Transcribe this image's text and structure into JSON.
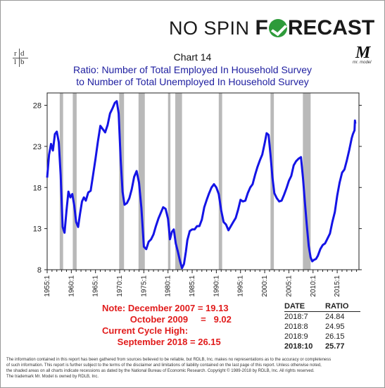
{
  "logo": {
    "part1": "NO SPIN",
    "part2a": "F",
    "part2b": "RECAST"
  },
  "rdlb": [
    "r",
    "d",
    "l",
    "b"
  ],
  "mrmodel": {
    "m": "M",
    "tag": "mr. model"
  },
  "title": {
    "line1": "Chart 14",
    "line2": "Ratio: Number of Total Employed In Household Survey",
    "line3": "to Number of Total Unemployed In Household Survey"
  },
  "colors": {
    "series": "#1414e6",
    "recession": "#b9b9b9",
    "note": "#e11b1b"
  },
  "chart_data": {
    "type": "line",
    "title": "Ratio: Number of Total Employed In Household Survey to Number of Total Unemployed In Household Survey",
    "xlim": [
      1955.0,
      2019.5
    ],
    "ylim": [
      8,
      29.5
    ],
    "yticks": [
      8,
      13,
      18,
      23,
      28
    ],
    "xticks": [
      1955,
      1960,
      1965,
      1970,
      1975,
      1980,
      1985,
      1990,
      1995,
      2000,
      2005,
      2010,
      2015
    ],
    "xtick_labels": [
      "1955:1",
      "1960:1",
      "1965:1",
      "1970:1",
      "1975:1",
      "1980:1",
      "1985:1",
      "1990:1",
      "1995:1",
      "2000:1",
      "2005:1",
      "2010:1",
      "2015:1"
    ],
    "grid": false,
    "recessions": [
      [
        1957.6,
        1958.3
      ],
      [
        1960.3,
        1961.1
      ],
      [
        1969.9,
        1970.9
      ],
      [
        1973.9,
        1975.2
      ],
      [
        1980.0,
        1980.5
      ],
      [
        1981.5,
        1982.9
      ],
      [
        1990.5,
        1991.2
      ],
      [
        2001.2,
        2001.9
      ],
      [
        2007.9,
        2009.5
      ]
    ],
    "series": [
      {
        "x": [
          1955.0,
          1955.4,
          1955.8,
          1956.2,
          1956.6,
          1957.0,
          1957.4,
          1957.8,
          1958.2,
          1958.6,
          1959.0,
          1959.4,
          1959.8,
          1960.2,
          1960.6,
          1961.0,
          1961.4,
          1961.8,
          1962.2,
          1962.6,
          1963.0,
          1963.5,
          1964.0,
          1964.5,
          1965.0,
          1965.5,
          1966.0,
          1966.5,
          1967.0,
          1967.5,
          1968.0,
          1968.5,
          1969.0,
          1969.4,
          1969.8,
          1970.2,
          1970.6,
          1971.0,
          1971.5,
          1972.0,
          1972.5,
          1973.0,
          1973.5,
          1974.0,
          1974.5,
          1975.0,
          1975.5,
          1976.0,
          1976.5,
          1977.0,
          1977.5,
          1978.0,
          1978.5,
          1979.0,
          1979.5,
          1980.0,
          1980.4,
          1980.8,
          1981.2,
          1981.6,
          1982.0,
          1982.5,
          1982.9,
          1983.3,
          1983.7,
          1984.0,
          1984.5,
          1985.0,
          1985.5,
          1986.0,
          1986.5,
          1987.0,
          1987.5,
          1988.0,
          1988.5,
          1989.0,
          1989.5,
          1990.0,
          1990.5,
          1991.0,
          1991.5,
          1992.0,
          1992.5,
          1993.0,
          1993.5,
          1994.0,
          1994.5,
          1995.0,
          1995.5,
          1996.0,
          1996.5,
          1997.0,
          1997.5,
          1998.0,
          1998.5,
          1999.0,
          1999.5,
          2000.0,
          2000.4,
          2000.8,
          2001.2,
          2001.6,
          2002.0,
          2002.5,
          2003.0,
          2003.5,
          2004.0,
          2004.5,
          2005.0,
          2005.5,
          2006.0,
          2006.5,
          2007.0,
          2007.5,
          2007.92,
          2008.3,
          2008.7,
          2009.1,
          2009.5,
          2009.83,
          2010.2,
          2010.6,
          2011.0,
          2011.5,
          2012.0,
          2012.5,
          2013.0,
          2013.5,
          2014.0,
          2014.5,
          2015.0,
          2015.5,
          2016.0,
          2016.5,
          2017.0,
          2017.5,
          2018.0,
          2018.25,
          2018.5,
          2018.58,
          2018.67,
          2018.75
        ],
        "y": [
          19.2,
          22.0,
          23.3,
          22.5,
          24.5,
          24.8,
          23.5,
          19.5,
          13.2,
          12.5,
          15.2,
          17.5,
          16.8,
          17.2,
          15.8,
          13.8,
          13.2,
          14.8,
          16.3,
          16.8,
          16.4,
          17.4,
          17.6,
          19.5,
          21.5,
          23.6,
          25.5,
          25.1,
          24.7,
          25.6,
          27.0,
          27.6,
          28.3,
          28.5,
          27.0,
          21.5,
          17.5,
          15.9,
          16.1,
          16.7,
          17.8,
          19.3,
          20.0,
          18.6,
          15.5,
          10.8,
          10.5,
          11.4,
          11.7,
          12.3,
          13.3,
          14.2,
          14.9,
          15.6,
          15.4,
          14.2,
          11.7,
          12.6,
          12.9,
          11.2,
          10.3,
          9.0,
          8.2,
          8.7,
          10.2,
          11.6,
          12.7,
          12.9,
          12.9,
          13.3,
          13.3,
          14.1,
          15.6,
          16.5,
          17.3,
          18.0,
          18.4,
          18.0,
          17.2,
          15.2,
          13.8,
          13.5,
          12.8,
          13.3,
          13.8,
          14.3,
          15.3,
          16.5,
          16.3,
          16.4,
          17.3,
          18.0,
          18.4,
          19.5,
          20.5,
          21.3,
          22.0,
          23.4,
          24.6,
          24.4,
          22.0,
          19.2,
          17.3,
          16.7,
          16.3,
          16.4,
          17.1,
          17.9,
          18.8,
          19.4,
          20.7,
          21.2,
          21.5,
          21.7,
          19.13,
          16.3,
          13.5,
          10.9,
          9.5,
          9.02,
          9.2,
          9.3,
          9.7,
          10.5,
          11.0,
          11.2,
          11.8,
          12.4,
          13.8,
          15.0,
          17.0,
          18.6,
          19.8,
          20.2,
          21.3,
          22.6,
          24.0,
          24.5,
          24.84,
          24.95,
          26.15,
          25.77
        ]
      }
    ]
  },
  "notes": {
    "line1": "Note: December 2007 = 19.13",
    "line2": "           October 2009     =   9.02",
    "line3": "Current Cycle High:",
    "line4": "      September 2018 = 26.15"
  },
  "ratio_table": {
    "date_header": "DATE",
    "ratio_header": "RATIO",
    "rows": [
      {
        "date": "2018:7",
        "ratio": "24.84"
      },
      {
        "date": "2018:8",
        "ratio": "24.95"
      },
      {
        "date": "2018:9",
        "ratio": "26.15"
      },
      {
        "date": "2018:10",
        "ratio": "25.77"
      }
    ]
  },
  "disclaimer": {
    "line1": "The information contained in this report has been gathered from sources believed to be reliable, but RDLB, Inc. makes no representations as to the accuracy or completeness",
    "line2": "of such information. This report is further subject to the terms of the disclaimer and limitations of liability contained on the last page of this report. Unless otherwise noted,",
    "line3": "the shaded areas on all charts indicate recessions as dated by the National Bureau of Economic Research. Copyright © 1989-2018 by RDLB, Inc. All rights reserved.",
    "line4": "The trademark Mr. Model is owned by RDLB, Inc."
  }
}
